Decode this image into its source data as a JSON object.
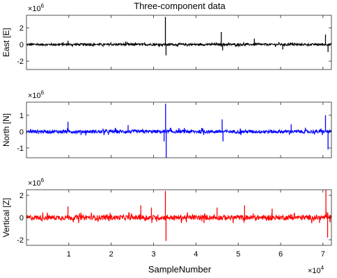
{
  "chart_data": {
    "type": "line",
    "title": "Three-component data",
    "xlabel": "SampleNumber",
    "x_multiplier": "×10",
    "x_multiplier_exp": "4",
    "xlim": [
      0,
      72000
    ],
    "x_ticks": [
      10000,
      20000,
      30000,
      40000,
      50000,
      60000,
      70000
    ],
    "x_tick_labels": [
      "1",
      "2",
      "3",
      "4",
      "5",
      "6",
      "7"
    ],
    "panels": [
      {
        "name": "east",
        "ylabel": "East [E]",
        "color": "#000000",
        "y_multiplier": "×10",
        "y_multiplier_exp": "6",
        "ylim": [
          -3,
          3.5
        ],
        "y_ticks": [
          -2,
          0,
          2
        ],
        "noise": 0.12,
        "spikes": [
          {
            "x": 9800,
            "y": 0.45
          },
          {
            "x": 23400,
            "y": 0.35
          },
          {
            "x": 32800,
            "y": 3.3
          },
          {
            "x": 32950,
            "y": -1.3
          },
          {
            "x": 46000,
            "y": 1.5
          },
          {
            "x": 46300,
            "y": -0.7
          },
          {
            "x": 53800,
            "y": 0.7
          },
          {
            "x": 60500,
            "y": -0.6
          },
          {
            "x": 70600,
            "y": 1.2
          },
          {
            "x": 71200,
            "y": -0.9
          }
        ]
      },
      {
        "name": "north",
        "ylabel": "North [N]",
        "color": "#0000ff",
        "y_multiplier": "×10",
        "y_multiplier_exp": "6",
        "ylim": [
          -1.6,
          1.8
        ],
        "y_ticks": [
          -1,
          0,
          1
        ],
        "noise": 0.1,
        "spikes": [
          {
            "x": 9800,
            "y": 0.6
          },
          {
            "x": 24000,
            "y": 0.4
          },
          {
            "x": 32500,
            "y": -0.6
          },
          {
            "x": 32850,
            "y": 1.7
          },
          {
            "x": 33000,
            "y": -1.6
          },
          {
            "x": 46200,
            "y": 0.75
          },
          {
            "x": 46400,
            "y": -0.6
          },
          {
            "x": 62500,
            "y": 0.45
          },
          {
            "x": 70600,
            "y": 1.0
          },
          {
            "x": 71200,
            "y": -1.1
          }
        ]
      },
      {
        "name": "vertical",
        "ylabel": "Vertical [Z]",
        "color": "#ff0000",
        "y_multiplier": "×10",
        "y_multiplier_exp": "6",
        "ylim": [
          -2.5,
          2.5
        ],
        "y_ticks": [
          -2,
          0,
          2
        ],
        "noise": 0.22,
        "spikes": [
          {
            "x": 9800,
            "y": 1.0
          },
          {
            "x": 27000,
            "y": 1.1
          },
          {
            "x": 29500,
            "y": 0.9
          },
          {
            "x": 32800,
            "y": 2.4
          },
          {
            "x": 32950,
            "y": -2.1
          },
          {
            "x": 45000,
            "y": 0.9
          },
          {
            "x": 51500,
            "y": 1.1
          },
          {
            "x": 58000,
            "y": 0.8
          },
          {
            "x": 70700,
            "y": 2.5
          },
          {
            "x": 71100,
            "y": -1.8
          }
        ]
      }
    ]
  }
}
